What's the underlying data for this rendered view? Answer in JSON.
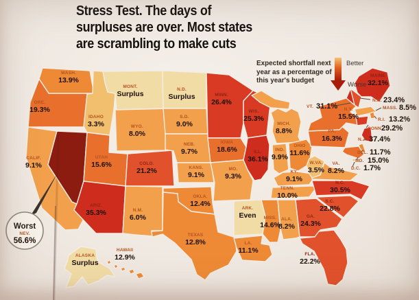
{
  "header": {
    "title": "Stress Test. The days of\nsurpluses are over. Most states\nare scrambling to make cuts"
  },
  "legend": {
    "caption": "Expected shortfall next\nyear as a percentage of\nthis year's budget",
    "better": "Better",
    "worse": "Worse"
  },
  "callout": {
    "label": "Worst",
    "state": "NEV.",
    "value": "56.6%"
  },
  "colors": {
    "paper": "#F0E9E2",
    "surplus": "#F1DCA6",
    "worst": "#8C1C10",
    "scale": [
      {
        "max": 5,
        "color": "#F2BF6E"
      },
      {
        "max": 10.5,
        "color": "#F2A04C"
      },
      {
        "max": 15,
        "color": "#EE8A36"
      },
      {
        "max": 20,
        "color": "#E8702C"
      },
      {
        "max": 25,
        "color": "#E1512B"
      },
      {
        "max": 31,
        "color": "#D83A24"
      },
      {
        "max": 45,
        "color": "#CE2C1C"
      }
    ],
    "abbr_on_light": "#B5521F",
    "abbr_on_dark": "#8E2413",
    "value_text": "#1D1008"
  },
  "chart_data": {
    "type": "heatmap",
    "subtype": "us_state_choropleth",
    "title": "Stress Test. The days of surpluses are over. Most states are scrambling to make cuts",
    "legend_note": "Expected shortfall next year as a percentage of this year's budget",
    "legend_scale": [
      "Better",
      "Worse"
    ],
    "worst": {
      "abbr": "NEV.",
      "display": "56.6%",
      "value": 56.6
    },
    "states": [
      {
        "id": "WA",
        "abbr": "WASH.",
        "display": "13.9%",
        "value": 13.9
      },
      {
        "id": "OR",
        "abbr": "ORE.",
        "display": "19.3%",
        "value": 19.3
      },
      {
        "id": "CA",
        "abbr": "CALIF.",
        "display": "9.1%",
        "value": 9.1
      },
      {
        "id": "NV",
        "abbr": "NEV.",
        "display": "56.6%",
        "value": 56.6
      },
      {
        "id": "ID",
        "abbr": "IDAHO",
        "display": "3.3%",
        "value": 3.3
      },
      {
        "id": "MT",
        "abbr": "MONT.",
        "display": "Surplus",
        "value": null
      },
      {
        "id": "WY",
        "abbr": "WYO.",
        "display": "8.0%",
        "value": 8.0
      },
      {
        "id": "UT",
        "abbr": "UTAH",
        "display": "15.6%",
        "value": 15.6
      },
      {
        "id": "CO",
        "abbr": "COLO.",
        "display": "21.2%",
        "value": 21.2
      },
      {
        "id": "AZ",
        "abbr": "ARIZ.",
        "display": "35.3%",
        "value": 35.3
      },
      {
        "id": "NM",
        "abbr": "N.M.",
        "display": "6.0%",
        "value": 6.0
      },
      {
        "id": "ND",
        "abbr": "N.D.",
        "display": "Surplus",
        "value": null
      },
      {
        "id": "SD",
        "abbr": "S.D.",
        "display": "9.0%",
        "value": 9.0
      },
      {
        "id": "NE",
        "abbr": "NEB.",
        "display": "9.7%",
        "value": 9.7
      },
      {
        "id": "KS",
        "abbr": "KANS.",
        "display": "9.1%",
        "value": 9.1
      },
      {
        "id": "OK",
        "abbr": "OKLA.",
        "display": "12.4%",
        "value": 12.4
      },
      {
        "id": "TX",
        "abbr": "TEXAS",
        "display": "12.8%",
        "value": 12.8
      },
      {
        "id": "MN",
        "abbr": "MINN.",
        "display": "26.4%",
        "value": 26.4
      },
      {
        "id": "IA",
        "abbr": "IOWA",
        "display": "18.6%",
        "value": 18.6
      },
      {
        "id": "WI",
        "abbr": "WIS.",
        "display": "25.3%",
        "value": 25.3
      },
      {
        "id": "MO",
        "abbr": "MO.",
        "display": "9.3%",
        "value": 9.3
      },
      {
        "id": "IL",
        "abbr": "ILL.",
        "display": "36.1%",
        "value": 36.1
      },
      {
        "id": "MI",
        "abbr": "MICH.",
        "display": "8.8%",
        "value": 8.8
      },
      {
        "id": "IN",
        "abbr": "IND.",
        "display": "9.9%",
        "value": 9.9
      },
      {
        "id": "OH",
        "abbr": "OHIO",
        "display": "11.6%",
        "value": 11.6
      },
      {
        "id": "KY",
        "abbr": "KY.",
        "display": "9.1%",
        "value": 9.1
      },
      {
        "id": "TN",
        "abbr": "TENN.",
        "display": "10.0%",
        "value": 10.0
      },
      {
        "id": "AR",
        "abbr": "ARK.",
        "display": "Even",
        "value": null
      },
      {
        "id": "LA",
        "abbr": "LA.",
        "display": "11.1%",
        "value": 11.1
      },
      {
        "id": "MS",
        "abbr": "MISS.",
        "display": "14.6%",
        "value": 14.6
      },
      {
        "id": "AL",
        "abbr": "ALA.",
        "display": "8.2%",
        "value": 8.2
      },
      {
        "id": "GA",
        "abbr": "GA.",
        "display": "24.3%",
        "value": 24.3
      },
      {
        "id": "SC",
        "abbr": "S.C.",
        "display": "22.8%",
        "value": 22.8
      },
      {
        "id": "NC",
        "abbr": "N.C.",
        "display": "30.5%",
        "value": 30.5
      },
      {
        "id": "FL",
        "abbr": "FLA.",
        "display": "22.2%",
        "value": 22.2
      },
      {
        "id": "WV",
        "abbr": "W.VA.",
        "display": "3.5%",
        "value": 3.5
      },
      {
        "id": "VA",
        "abbr": "VA.",
        "display": "8.2%",
        "value": 8.2
      },
      {
        "id": "PA",
        "abbr": "PA.",
        "display": "16.3%",
        "value": 16.3
      },
      {
        "id": "NY",
        "abbr": "N.Y.",
        "display": "15.5%",
        "value": 15.5
      },
      {
        "id": "ME",
        "abbr": "MAINE",
        "display": "32.1%",
        "value": 32.1
      },
      {
        "id": "VT",
        "abbr": "VT.",
        "display": "31.1%",
        "value": 31.1
      },
      {
        "id": "NH",
        "abbr": "N.H.",
        "display": "23.4%",
        "value": 23.4
      },
      {
        "id": "MA",
        "abbr": "MASS.",
        "display": "8.5%",
        "value": 8.5
      },
      {
        "id": "RI",
        "abbr": "R.I.",
        "display": "13.2%",
        "value": 13.2
      },
      {
        "id": "CT",
        "abbr": "CONN.",
        "display": "29.2%",
        "value": 29.2
      },
      {
        "id": "NJ",
        "abbr": "N.J.",
        "display": "37.4%",
        "value": 37.4
      },
      {
        "id": "DE",
        "abbr": "DEL.",
        "display": "11.7%",
        "value": 11.7
      },
      {
        "id": "MD",
        "abbr": "MD.",
        "display": "15.0%",
        "value": 15.0
      },
      {
        "id": "DC",
        "abbr": "D.C.",
        "display": "1.7%",
        "value": 1.7
      },
      {
        "id": "AK",
        "abbr": "ALASKA",
        "display": "Surplus",
        "value": null
      },
      {
        "id": "HI",
        "abbr": "HAWAII",
        "display": "12.9%",
        "value": 12.9
      }
    ]
  }
}
